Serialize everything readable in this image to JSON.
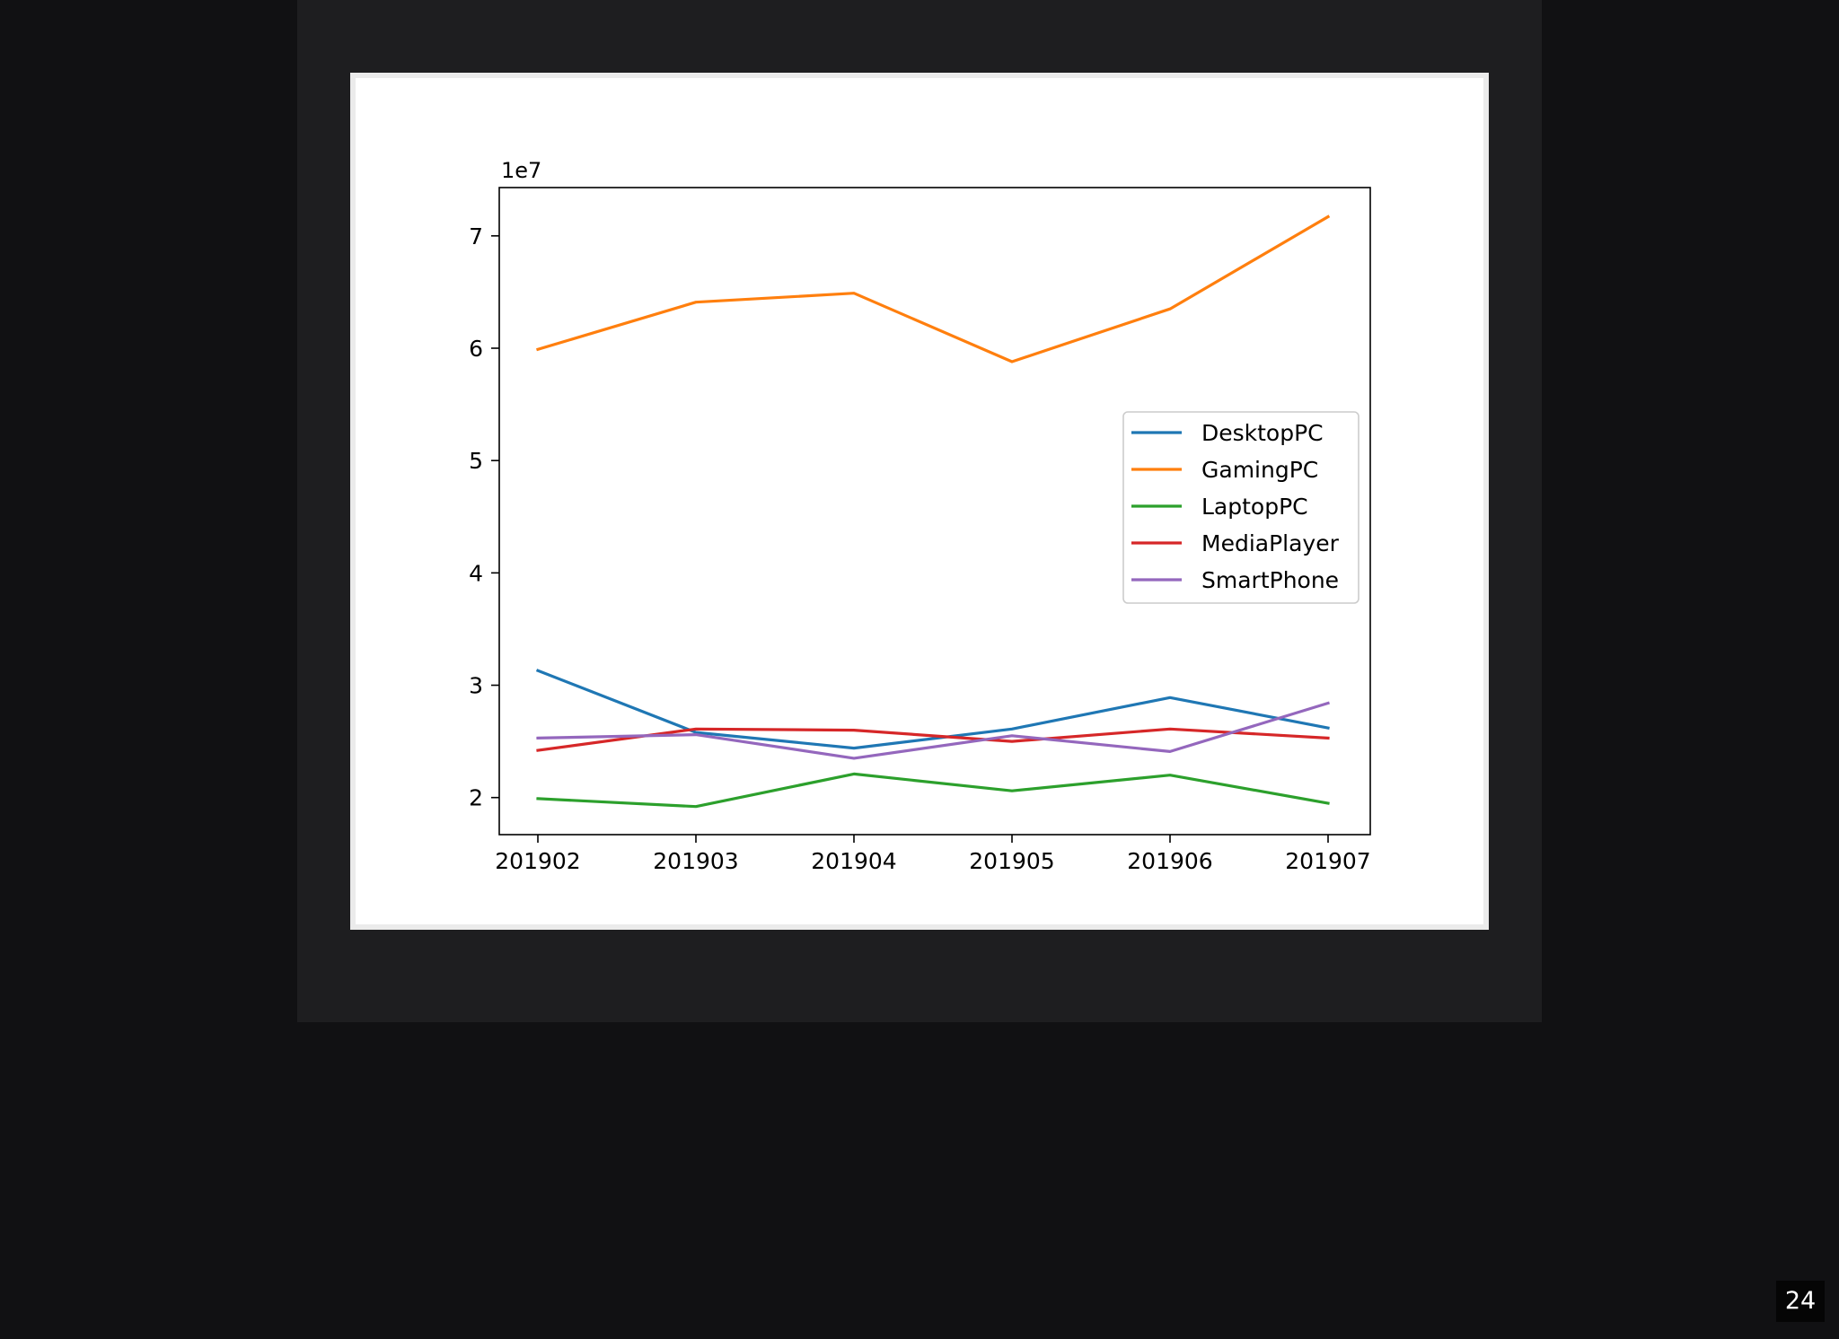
{
  "page_number": "24",
  "chart_data": {
    "type": "line",
    "title": "",
    "xlabel": "",
    "ylabel": "",
    "y_offset_label": "1e7",
    "y_scale_factor": 10000000,
    "categories": [
      "201902",
      "201903",
      "201904",
      "201905",
      "201906",
      "201907"
    ],
    "yticks": [
      2,
      3,
      4,
      5,
      6,
      7
    ],
    "ylim": [
      16700000,
      74300000
    ],
    "grid": false,
    "legend_position": "center-right",
    "series": [
      {
        "name": "DesktopPC",
        "color": "#1f77b4",
        "values": [
          31300000,
          25800000,
          24400000,
          26100000,
          28900000,
          26200000
        ]
      },
      {
        "name": "GamingPC",
        "color": "#ff7f0e",
        "values": [
          59900000,
          64100000,
          64900000,
          58800000,
          63500000,
          71700000
        ]
      },
      {
        "name": "LaptopPC",
        "color": "#2ca02c",
        "values": [
          19900000,
          19200000,
          22100000,
          20600000,
          22000000,
          19500000
        ]
      },
      {
        "name": "MediaPlayer",
        "color": "#d62728",
        "values": [
          24200000,
          26100000,
          26000000,
          25000000,
          26100000,
          25300000
        ]
      },
      {
        "name": "SmartPhone",
        "color": "#9467bd",
        "values": [
          25300000,
          25600000,
          23500000,
          25500000,
          24100000,
          28400000
        ]
      }
    ]
  }
}
